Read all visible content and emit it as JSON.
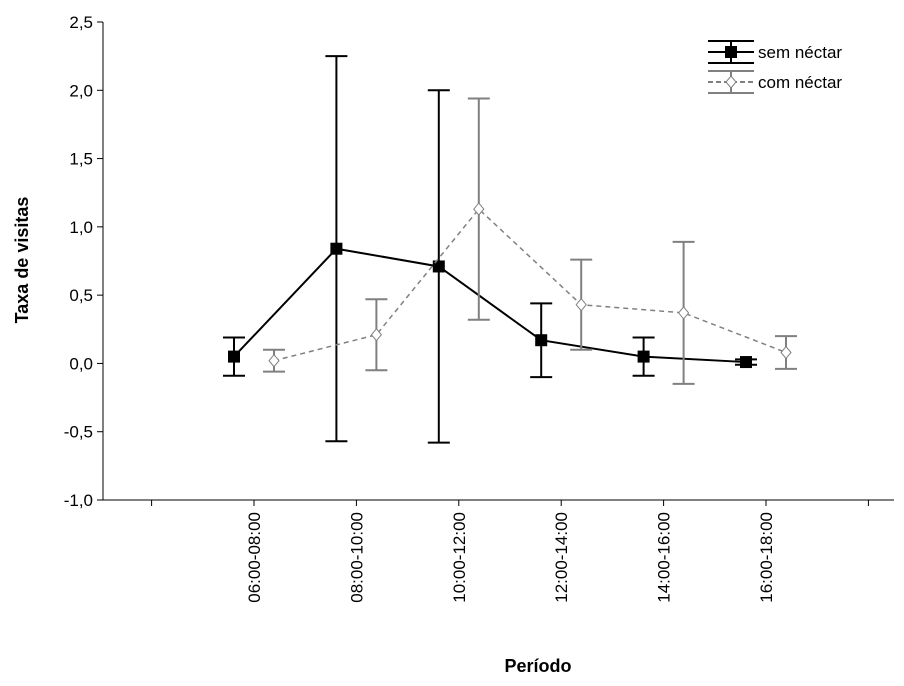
{
  "chart_data": {
    "type": "line_errorbar",
    "x_label": "Período",
    "y_label": "Taxa de visitas",
    "categories": [
      "06:00-08:00",
      "08:00-10:00",
      "10:00-12:00",
      "12:00-14:00",
      "14:00-16:00",
      "16:00-18:00"
    ],
    "series": [
      {
        "name": "sem néctar",
        "color": "#000000",
        "values": [
          0.05,
          0.84,
          0.71,
          0.17,
          0.05,
          0.01
        ],
        "errors": [
          0.14,
          1.41,
          1.29,
          0.27,
          0.14,
          0.02
        ]
      },
      {
        "name": "com néctar",
        "color": "#808080",
        "values": [
          0.02,
          0.21,
          1.13,
          0.43,
          0.37,
          0.08
        ],
        "errors": [
          0.08,
          0.26,
          0.81,
          0.33,
          0.52,
          0.12
        ]
      }
    ],
    "ylim": [
      -1,
      2.5
    ],
    "yticks": [
      {
        "value": -1,
        "label": "-1,0"
      },
      {
        "value": -0.5,
        "label": "-0,5"
      },
      {
        "value": 0,
        "label": "0,0"
      },
      {
        "value": 0.5,
        "label": "0,5"
      },
      {
        "value": 1,
        "label": "1,0"
      },
      {
        "value": 1.5,
        "label": "1,5"
      },
      {
        "value": 2,
        "label": "2,0"
      },
      {
        "value": 2.5,
        "label": "2,5"
      }
    ],
    "legend": "top-right"
  }
}
